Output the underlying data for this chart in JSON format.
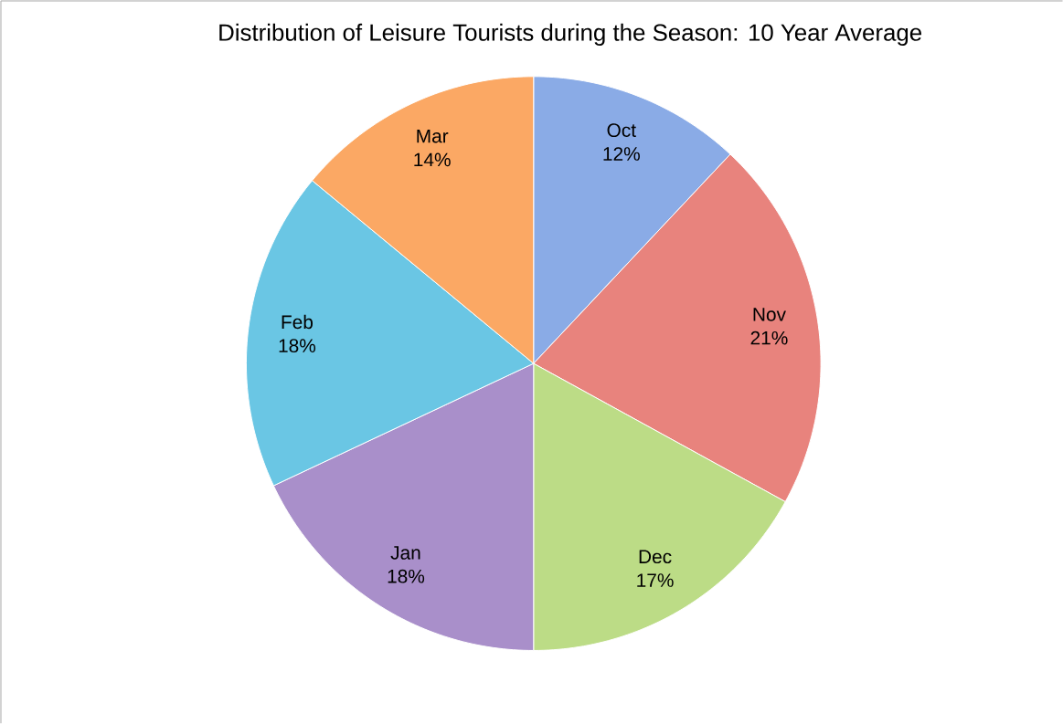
{
  "chart_data": {
    "type": "pie",
    "title": "Distribution of Leisure Tourists during the Season: 10 Year Average",
    "categories": [
      "Oct",
      "Nov",
      "Dec",
      "Jan",
      "Feb",
      "Mar"
    ],
    "values": [
      12,
      21,
      17,
      18,
      18,
      14
    ],
    "value_labels": [
      "12%",
      "21%",
      "17%",
      "18%",
      "18%",
      "14%"
    ],
    "colors": [
      "#8aabe6",
      "#e8837d",
      "#bcdc86",
      "#a98fca",
      "#6ac6e4",
      "#fba864"
    ]
  }
}
